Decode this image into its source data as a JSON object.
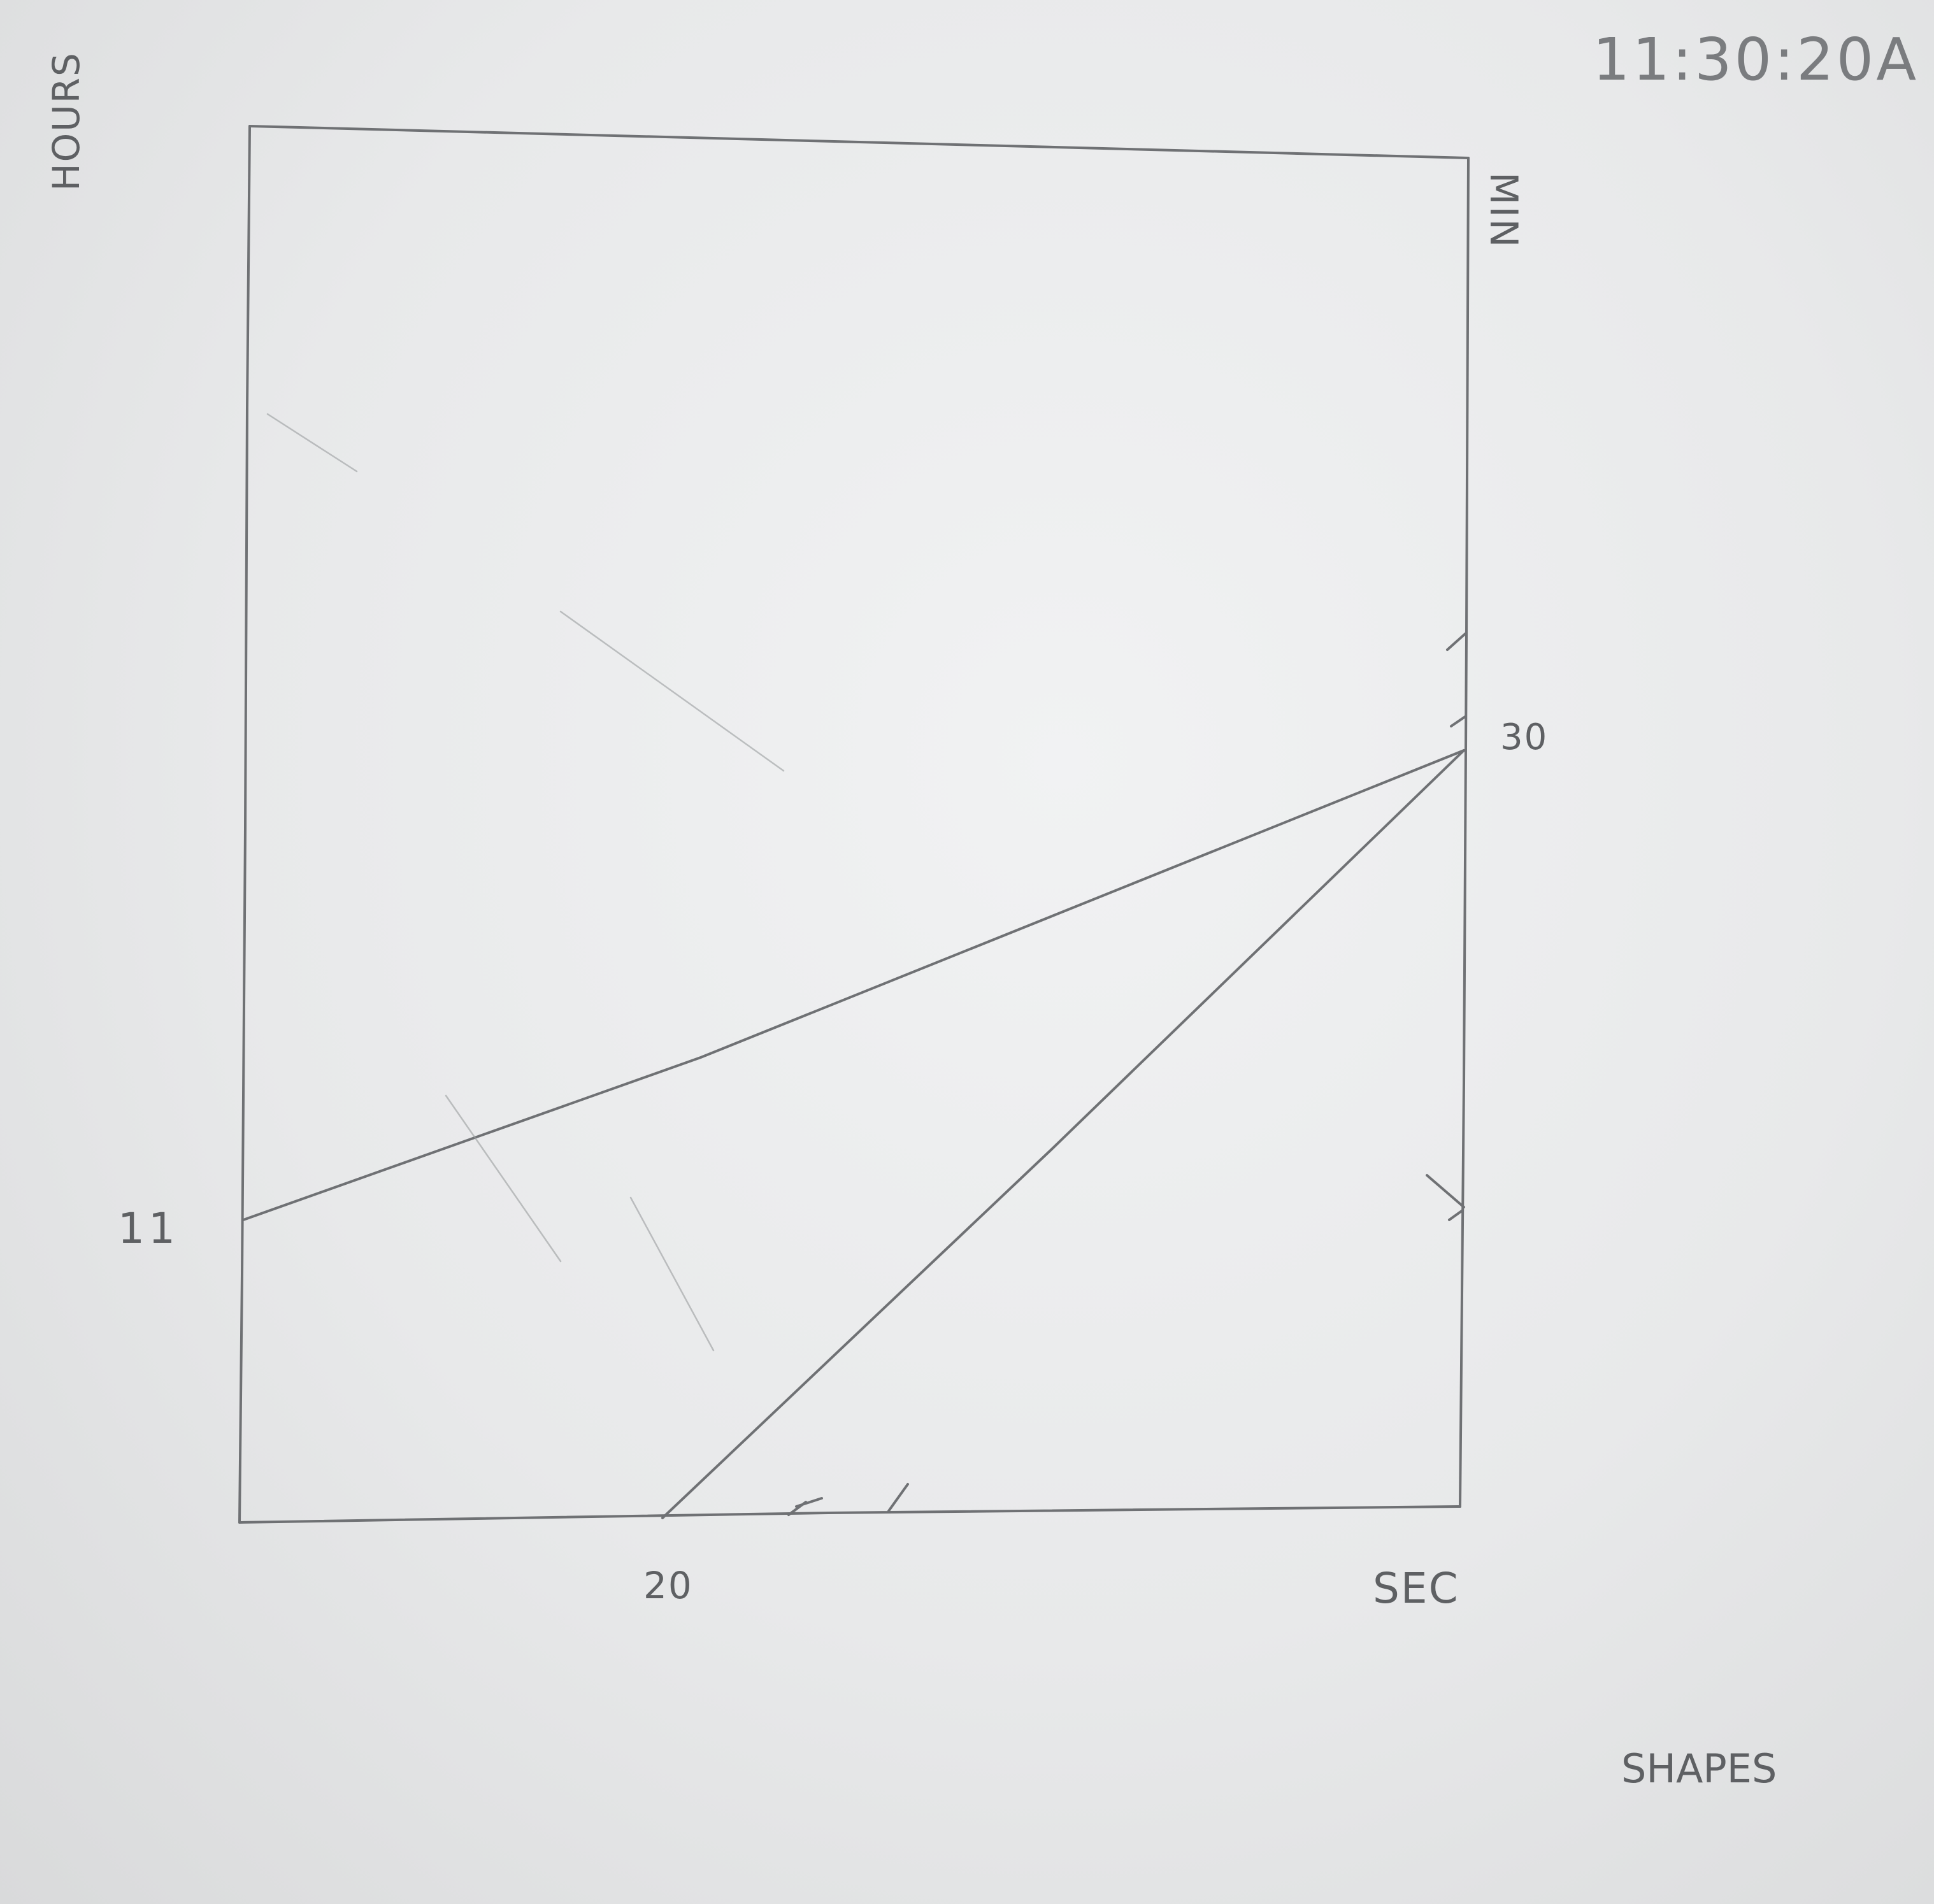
{
  "sketch": {
    "time_label": "11:30:20A",
    "axis_left_label": "HOURS",
    "axis_right_label": "MIN",
    "axis_bottom_label": "SEC",
    "tick_hours": "11",
    "tick_min": "30",
    "tick_sec": "20",
    "caption": "SHAPES"
  }
}
